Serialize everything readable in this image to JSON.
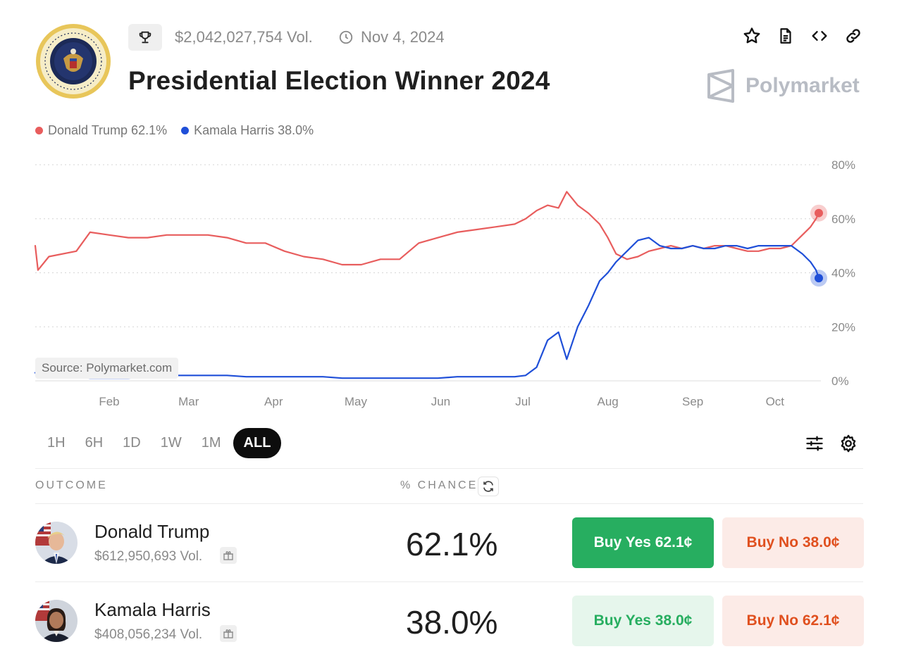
{
  "header": {
    "volume": "$2,042,027,754 Vol.",
    "date": "Nov 4, 2024",
    "title": "Presidential Election Winner 2024",
    "brand": "Polymarket"
  },
  "legend": [
    {
      "label": "Donald Trump 62.1%",
      "color": "#e85d5d"
    },
    {
      "label": "Kamala Harris 38.0%",
      "color": "#1f4fd8"
    }
  ],
  "chart_data": {
    "type": "line",
    "xlabel": "",
    "ylabel": "",
    "x_ticks": [
      "Feb",
      "Mar",
      "Apr",
      "May",
      "Jun",
      "Jul",
      "Aug",
      "Sep",
      "Oct"
    ],
    "y_ticks": [
      "80%",
      "60%",
      "40%",
      "20%",
      "0%"
    ],
    "ylim": [
      0,
      80
    ],
    "grid": true,
    "x": [
      "2024-01-05",
      "2024-01-06",
      "2024-01-10",
      "2024-01-20",
      "2024-01-25",
      "2024-02-01",
      "2024-02-08",
      "2024-02-15",
      "2024-02-22",
      "2024-03-01",
      "2024-03-08",
      "2024-03-15",
      "2024-03-22",
      "2024-03-29",
      "2024-04-05",
      "2024-04-12",
      "2024-04-19",
      "2024-04-26",
      "2024-05-03",
      "2024-05-10",
      "2024-05-17",
      "2024-05-24",
      "2024-05-31",
      "2024-06-07",
      "2024-06-14",
      "2024-06-21",
      "2024-06-28",
      "2024-07-02",
      "2024-07-06",
      "2024-07-10",
      "2024-07-14",
      "2024-07-17",
      "2024-07-21",
      "2024-07-25",
      "2024-07-29",
      "2024-08-01",
      "2024-08-04",
      "2024-08-08",
      "2024-08-12",
      "2024-08-16",
      "2024-08-20",
      "2024-08-24",
      "2024-08-28",
      "2024-09-01",
      "2024-09-05",
      "2024-09-09",
      "2024-09-13",
      "2024-09-17",
      "2024-09-21",
      "2024-09-25",
      "2024-09-29",
      "2024-10-03",
      "2024-10-07",
      "2024-10-11",
      "2024-10-14",
      "2024-10-16",
      "2024-10-17"
    ],
    "series": [
      {
        "name": "Donald Trump",
        "color": "#e85d5d",
        "values": [
          50,
          41,
          46,
          48,
          55,
          54,
          53,
          53,
          54,
          54,
          54,
          53,
          51,
          51,
          48,
          46,
          45,
          43,
          43,
          45,
          45,
          51,
          53,
          55,
          56,
          57,
          58,
          60,
          63,
          65,
          64,
          70,
          65,
          62,
          58,
          53,
          47,
          45,
          46,
          48,
          49,
          50,
          49,
          50,
          49,
          50,
          50,
          49,
          48,
          48,
          49,
          49,
          50,
          54,
          57,
          60,
          62.1
        ]
      },
      {
        "name": "Kamala Harris",
        "color": "#1f4fd8",
        "values": [
          3,
          2,
          2,
          1.5,
          1,
          1,
          1,
          1.5,
          2,
          2,
          2,
          2,
          1.5,
          1.5,
          1.5,
          1.5,
          1.5,
          1,
          1,
          1,
          1,
          1,
          1,
          1.5,
          1.5,
          1.5,
          1.5,
          2,
          5,
          15,
          18,
          8,
          20,
          28,
          37,
          40,
          44,
          48,
          52,
          53,
          50,
          49,
          49,
          50,
          49,
          49,
          50,
          50,
          49,
          50,
          50,
          50,
          50,
          47,
          44,
          41,
          38.0
        ]
      }
    ]
  },
  "source_label": "Source: Polymarket.com",
  "ranges": [
    "1H",
    "6H",
    "1D",
    "1W",
    "1M",
    "ALL"
  ],
  "active_range": "ALL",
  "table": {
    "col_outcome": "OUTCOME",
    "col_chance": "% CHANCE",
    "rows": [
      {
        "name": "Donald Trump",
        "volume": "$612,950,693 Vol.",
        "chance": "62.1%",
        "buy_yes": "Buy Yes 62.1¢",
        "buy_no": "Buy No 38.0¢"
      },
      {
        "name": "Kamala Harris",
        "volume": "$408,056,234 Vol.",
        "chance": "38.0%",
        "buy_yes": "Buy Yes 38.0¢",
        "buy_no": "Buy No 62.1¢"
      }
    ]
  },
  "icons": [
    "trophy-icon",
    "clock-icon",
    "star-icon",
    "document-icon",
    "code-icon",
    "link-icon",
    "sliders-icon",
    "gear-icon",
    "refresh-icon",
    "gift-icon"
  ]
}
